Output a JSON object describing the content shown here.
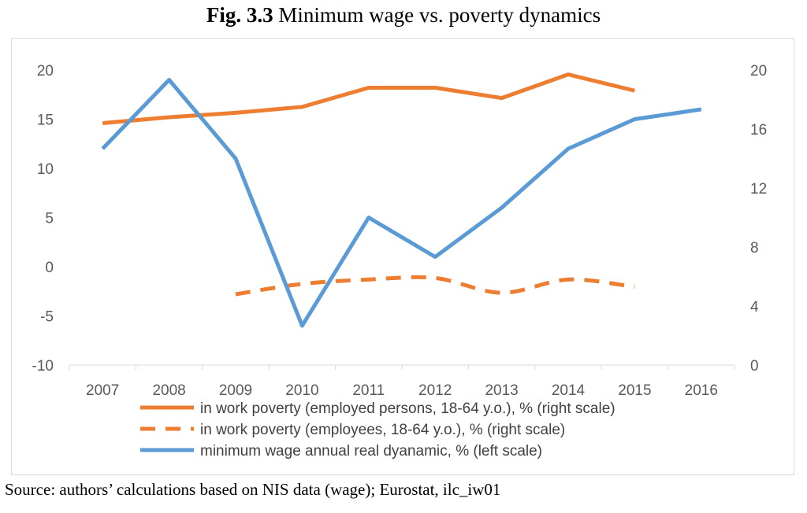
{
  "figure": {
    "title_bold": "Fig. 3.3",
    "title_rest": "Minimum wage vs. poverty dynamics",
    "source": "Source: authors’ calculations based on NIS data (wage); Eurostat, ilc_iw01"
  },
  "chart_data": {
    "type": "line",
    "categories": [
      "2007",
      "2008",
      "2009",
      "2010",
      "2011",
      "2012",
      "2013",
      "2014",
      "2015",
      "2016"
    ],
    "left_axis": {
      "min": -10,
      "max": 20,
      "ticks": [
        20,
        15,
        10,
        5,
        0,
        -5,
        -10
      ]
    },
    "right_axis": {
      "min": 0,
      "max": 20,
      "ticks": [
        20,
        16,
        12,
        8,
        4,
        0
      ]
    },
    "grid": false,
    "legend_position": "bottom",
    "series": [
      {
        "name": "in work poverty (employed persons, 18-64 y.o.), % (right scale)",
        "axis": "right",
        "style": "solid",
        "color": "#ED7D31",
        "values": [
          16.4,
          16.8,
          17.1,
          17.5,
          18.8,
          18.8,
          18.1,
          19.7,
          18.6,
          null
        ]
      },
      {
        "name": "in work poverty (employees, 18-64 y.o.), % (right scale)",
        "axis": "right",
        "style": "dashed",
        "color": "#ED7D31",
        "values": [
          null,
          null,
          4.8,
          5.5,
          5.8,
          5.9,
          4.9,
          5.8,
          5.3,
          null
        ]
      },
      {
        "name": "minimum wage annual real dyanamic, % (left scale)",
        "axis": "left",
        "style": "solid",
        "color": "#5B9BD5",
        "values": [
          12,
          19,
          11,
          -6,
          5,
          1,
          6,
          12,
          15,
          16
        ]
      }
    ]
  }
}
